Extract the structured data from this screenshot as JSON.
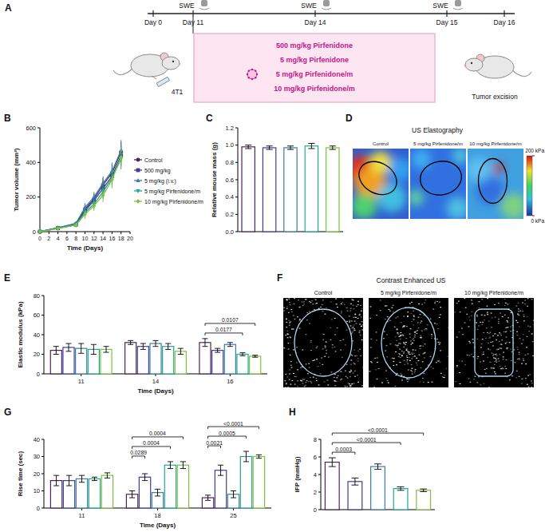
{
  "schematic": {
    "panel": "A",
    "days": [
      "Day 0",
      "Day 11",
      "Day 14",
      "Day 15",
      "Day 16"
    ],
    "imaging": [
      "SWE",
      "SWE",
      "SWE"
    ],
    "treatments": [
      "500 mg/kg Pirfenidone",
      "5 mg/kg Pirfenidone",
      "5 mg/kg Pirfenidone/m",
      "10 mg/kg Pirfenidone/m"
    ],
    "cell_line": "4T1",
    "endpoint": "Tumor excision"
  },
  "images": [
    {
      "panel": "D",
      "title": "US Elastography",
      "labels": [
        "Control",
        "5 mg/kg Pirfenidone/m",
        "10 mg/kg Pirfenidone/m"
      ],
      "colorbar": {
        "range": [
          0,
          200
        ],
        "ticks": [
          {
            "value": 200,
            "label": "200 kPa"
          },
          {
            "value": 0,
            "label": "0 kPa"
          }
        ]
      }
    },
    {
      "panel": "F",
      "title": "Contrast Enhanced US",
      "labels": [
        "Control",
        "5 mg/kg Pirfenidone/m",
        "10 mg/kg Pirfenidone/m"
      ]
    }
  ],
  "chart_data": [
    {
      "panel": "B",
      "type": "line",
      "x_label": "Time (Days)",
      "y_label": "Tumor volume (mm³)",
      "x": [
        0,
        4,
        8,
        10,
        12,
        14,
        16,
        18
      ],
      "xlim": [
        0,
        20
      ],
      "xticks": [
        0,
        2,
        4,
        6,
        8,
        10,
        12,
        14,
        16,
        18,
        20
      ],
      "ylim": [
        0,
        600
      ],
      "yticks": [
        0,
        200,
        400,
        600
      ],
      "legend": "right",
      "series": [
        {
          "name": "Control",
          "color": "#4a2560",
          "marker": "circle",
          "values": [
            0,
            22,
            45,
            130,
            190,
            270,
            340,
            460
          ],
          "errors": [
            0,
            5,
            10,
            25,
            30,
            40,
            50,
            60
          ]
        },
        {
          "name": "500 mg/kg",
          "color": "#3f3d96",
          "marker": "square",
          "values": [
            0,
            20,
            40,
            120,
            180,
            250,
            320,
            440
          ],
          "errors": [
            0,
            5,
            10,
            25,
            30,
            40,
            50,
            60
          ]
        },
        {
          "name": "5 mg/kg (i.v.)",
          "color": "#3b7ea1",
          "marker": "triangle",
          "values": [
            0,
            22,
            48,
            140,
            200,
            280,
            350,
            470
          ],
          "errors": [
            0,
            5,
            10,
            25,
            30,
            40,
            50,
            60
          ]
        },
        {
          "name": "5 mg/kg Pirfenidone/m",
          "color": "#1fa88f",
          "marker": "triangle-down",
          "values": [
            0,
            20,
            40,
            110,
            160,
            230,
            310,
            420
          ],
          "errors": [
            0,
            5,
            10,
            25,
            30,
            40,
            50,
            60
          ]
        },
        {
          "name": "10 mg/kg Pirfenidone/m",
          "color": "#7cc242",
          "marker": "diamond",
          "values": [
            0,
            18,
            38,
            100,
            150,
            210,
            300,
            430
          ],
          "errors": [
            0,
            5,
            10,
            25,
            30,
            40,
            50,
            60
          ]
        }
      ]
    },
    {
      "panel": "C",
      "type": "bar",
      "y_label": "Relative mouse mass (g)",
      "categories": [
        null,
        null,
        null,
        null,
        null
      ],
      "values": [
        0.98,
        0.97,
        0.97,
        0.99,
        0.97
      ],
      "errors": [
        0.02,
        0.02,
        0.02,
        0.03,
        0.02
      ],
      "colors": [
        "#4a2560",
        "#3f3d96",
        "#3b7ea1",
        "#1fa88f",
        "#7cc242"
      ],
      "ylim": [
        0,
        1.2
      ],
      "yticks": [
        {
          "value": 0,
          "label": "0.0"
        },
        0.2,
        0.4,
        0.6,
        0.8,
        {
          "value": 1,
          "label": "1.0"
        },
        1.2
      ]
    },
    {
      "panel": "E",
      "type": "bar",
      "x_label": "Time (Days)",
      "y_label": "Elastic modulus (kPa)",
      "categories": [
        "11",
        "14",
        "16"
      ],
      "ylim": [
        0,
        80
      ],
      "yticks": [
        0,
        20,
        40,
        60,
        80
      ],
      "series": [
        {
          "color": "#4a2560",
          "values": [
            24,
            32,
            32
          ],
          "errors": [
            4,
            2,
            4
          ]
        },
        {
          "color": "#3f3d96",
          "values": [
            27,
            28,
            24
          ],
          "errors": [
            4,
            3,
            2
          ]
        },
        {
          "color": "#3b7ea1",
          "values": [
            26,
            31,
            30
          ],
          "errors": [
            5,
            3,
            2
          ]
        },
        {
          "color": "#1fa88f",
          "values": [
            25,
            28,
            20
          ],
          "errors": [
            5,
            3,
            1.5
          ]
        },
        {
          "color": "#7cc242",
          "values": [
            25,
            23,
            18
          ],
          "errors": [
            3,
            3,
            1
          ]
        }
      ],
      "annotations": [
        {
          "text": "0.0177",
          "category": 2,
          "from": 0,
          "to": 3
        },
        {
          "text": "0.0107",
          "category": 2,
          "from": 0,
          "to": 4
        }
      ]
    },
    {
      "panel": "G",
      "type": "bar",
      "x_label": "Time (Days)",
      "y_label": "Rise time (sec)",
      "categories": [
        "11",
        "18",
        "25"
      ],
      "ylim": [
        0,
        40
      ],
      "yticks": [
        0,
        10,
        20,
        30,
        40
      ],
      "series": [
        {
          "color": "#4a2560",
          "values": [
            16,
            8,
            6
          ],
          "errors": [
            3,
            2,
            1.5
          ]
        },
        {
          "color": "#3f3d96",
          "values": [
            16,
            18,
            22
          ],
          "errors": [
            3,
            2,
            3
          ]
        },
        {
          "color": "#3b7ea1",
          "values": [
            17,
            9,
            8
          ],
          "errors": [
            2,
            2,
            2
          ]
        },
        {
          "color": "#1fa88f",
          "values": [
            17,
            25,
            30
          ],
          "errors": [
            1,
            2,
            3
          ]
        },
        {
          "color": "#7cc242",
          "values": [
            19,
            25,
            30
          ],
          "errors": [
            1.5,
            2,
            1
          ]
        }
      ],
      "annotations": [
        {
          "text": "0.0289",
          "category": 1,
          "from": 0,
          "to": 1
        },
        {
          "text": "0.0004",
          "category": 1,
          "from": 0,
          "to": 3
        },
        {
          "text": "0.0004",
          "category": 1,
          "from": 0,
          "to": 4
        },
        {
          "text": "0.0021",
          "category": 2,
          "from": 0,
          "to": 1
        },
        {
          "text": "0.0005",
          "category": 2,
          "from": 0,
          "to": 3
        },
        {
          "text": "<0.0001",
          "category": 2,
          "from": 0,
          "to": 4
        }
      ]
    },
    {
      "panel": "H",
      "type": "bar",
      "y_label": "IFP (mmHg)",
      "categories": [
        null,
        null,
        null,
        null,
        null
      ],
      "values": [
        5.4,
        3.2,
        4.9,
        2.4,
        2.2
      ],
      "errors": [
        0.5,
        0.4,
        0.3,
        0.2,
        0.15
      ],
      "colors": [
        "#4a2560",
        "#3f3d96",
        "#3b7ea1",
        "#1fa88f",
        "#7cc242"
      ],
      "ylim": [
        0,
        8
      ],
      "yticks": [
        0,
        2,
        4,
        6,
        8
      ],
      "annotations": [
        {
          "text": "0.0003",
          "from": 0,
          "to": 1
        },
        {
          "text": "<0.0001",
          "from": 0,
          "to": 3
        },
        {
          "text": "<0.0001",
          "from": 0,
          "to": 4
        }
      ]
    }
  ]
}
